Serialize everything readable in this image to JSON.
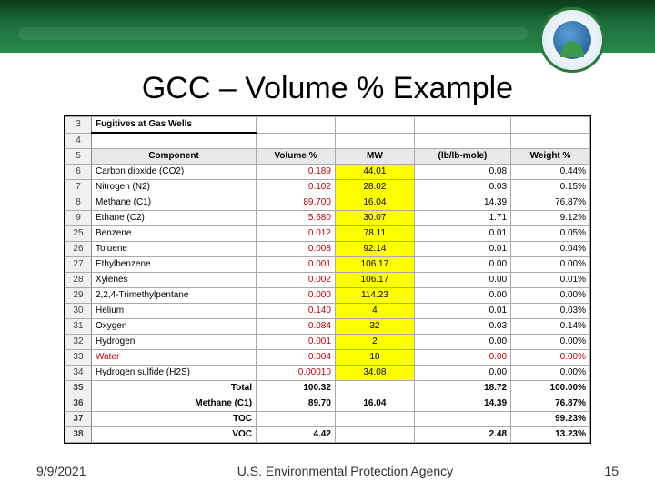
{
  "title": "GCC – Volume % Example",
  "footer": {
    "date": "9/9/2021",
    "org": "U.S. Environmental Protection Agency",
    "page": "15"
  },
  "sectionHeader": {
    "rownum": "3",
    "label": "Fugitives at Gas Wells"
  },
  "emptyRow": {
    "rownum": "4"
  },
  "columns": {
    "rownum": "5",
    "component": "Component",
    "vol": "Volume %",
    "mw": "MW",
    "lbmol": "(lb/lb-mole)",
    "wt": "Weight %"
  },
  "rows": [
    {
      "rownum": "6",
      "component": "Carbon dioxide (CO2)",
      "vol": "0.189",
      "mw": "44.01",
      "lbmol": "0.08",
      "wt": "0.44%",
      "mwYellow": true,
      "volRed": true
    },
    {
      "rownum": "7",
      "component": "Nitrogen (N2)",
      "vol": "0.102",
      "mw": "28.02",
      "lbmol": "0.03",
      "wt": "0.15%",
      "mwYellow": true,
      "volRed": true
    },
    {
      "rownum": "8",
      "component": "Methane (C1)",
      "vol": "89.700",
      "mw": "16.04",
      "lbmol": "14.39",
      "wt": "76.87%",
      "mwYellow": true,
      "volRed": true
    },
    {
      "rownum": "9",
      "component": "Ethane (C2)",
      "vol": "5.680",
      "mw": "30.07",
      "lbmol": "1.71",
      "wt": "9.12%",
      "mwYellow": true,
      "volRed": true
    },
    {
      "rownum": "25",
      "component": "Benzene",
      "vol": "0.012",
      "mw": "78.11",
      "lbmol": "0.01",
      "wt": "0.05%",
      "mwYellow": true,
      "volRed": true
    },
    {
      "rownum": "26",
      "component": "Toluene",
      "vol": "0.008",
      "mw": "92.14",
      "lbmol": "0.01",
      "wt": "0.04%",
      "mwYellow": true,
      "volRed": true
    },
    {
      "rownum": "27",
      "component": "Ethylbenzene",
      "vol": "0.001",
      "mw": "106.17",
      "lbmol": "0.00",
      "wt": "0.00%",
      "mwYellow": true,
      "volRed": true
    },
    {
      "rownum": "28",
      "component": "Xylenes",
      "vol": "0.002",
      "mw": "106.17",
      "lbmol": "0.00",
      "wt": "0.01%",
      "mwYellow": true,
      "volRed": true
    },
    {
      "rownum": "29",
      "component": "2,2,4-Trimethylpentane",
      "vol": "0.000",
      "mw": "114.23",
      "lbmol": "0.00",
      "wt": "0.00%",
      "mwYellow": true,
      "volRed": true
    },
    {
      "rownum": "30",
      "component": "Helium",
      "vol": "0.140",
      "mw": "4",
      "lbmol": "0.01",
      "wt": "0.03%",
      "mwYellow": true,
      "volRed": true
    },
    {
      "rownum": "31",
      "component": "Oxygen",
      "vol": "0.084",
      "mw": "32",
      "lbmol": "0.03",
      "wt": "0.14%",
      "mwYellow": true,
      "volRed": true
    },
    {
      "rownum": "32",
      "component": "Hydrogen",
      "vol": "0.001",
      "mw": "2",
      "lbmol": "0.00",
      "wt": "0.00%",
      "mwYellow": true,
      "volRed": true
    },
    {
      "rownum": "33",
      "component": "Water",
      "vol": "0.004",
      "mw": "18",
      "lbmol": "0.00",
      "wt": "0.00%",
      "mwYellow": true,
      "volRed": true,
      "compRed": true,
      "lbmolRed": true,
      "wtRed": true
    },
    {
      "rownum": "34",
      "component": "Hydrogen sulfide (H2S)",
      "vol": "0.00010",
      "mw": "34.08",
      "lbmol": "0.00",
      "wt": "0.00%",
      "mwYellow": true,
      "volRed": true
    }
  ],
  "summary": [
    {
      "rownum": "35",
      "label": "Total",
      "vol": "100.32",
      "mw": "",
      "lbmol": "18.72",
      "wt": "100.00%"
    },
    {
      "rownum": "36",
      "label": "Methane (C1)",
      "vol": "89.70",
      "mw": "16.04",
      "lbmol": "14.39",
      "wt": "76.87%"
    },
    {
      "rownum": "37",
      "label": "TOC",
      "vol": "",
      "mw": "",
      "lbmol": "",
      "wt": "99.23%"
    },
    {
      "rownum": "38",
      "label": "VOC",
      "vol": "4.42",
      "mw": "",
      "lbmol": "2.48",
      "wt": "13.23%"
    }
  ]
}
